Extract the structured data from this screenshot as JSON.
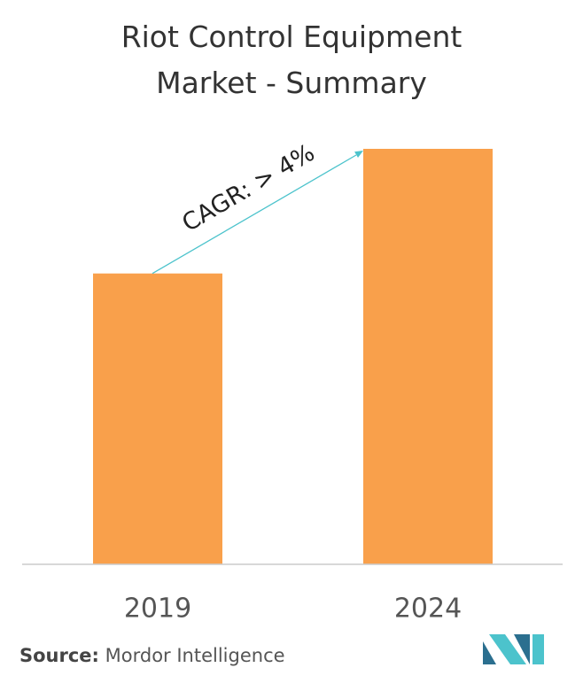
{
  "chart_data": {
    "type": "bar",
    "title": "Riot Control Equipment Market - Summary",
    "categories": [
      "2019",
      "2024"
    ],
    "values": [
      70,
      100
    ],
    "color": "#f9a04b",
    "annotation": "CAGR: > 4%",
    "annotation_color": "#4cc3cc"
  },
  "source": {
    "label": "Source:",
    "text": "Mordor Intelligence"
  }
}
